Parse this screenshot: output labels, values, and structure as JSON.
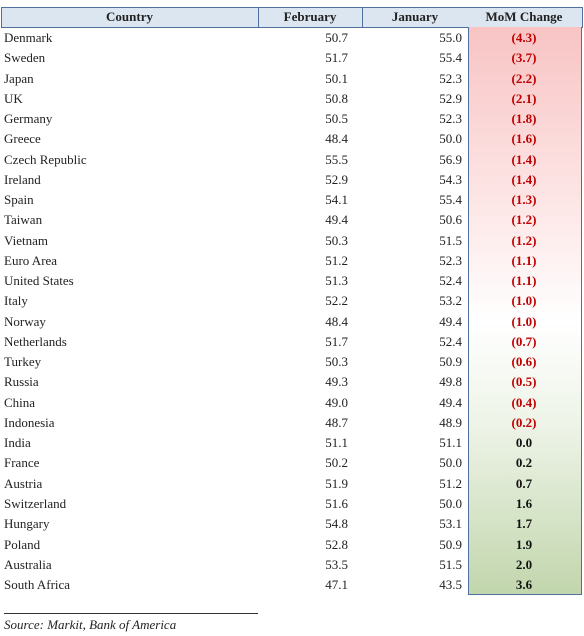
{
  "table": {
    "header": [
      "Country",
      "February",
      "January",
      "MoM Change"
    ],
    "rows": [
      [
        "Denmark",
        "50.7",
        "55.0",
        "(4.3)"
      ],
      [
        "Sweden",
        "51.7",
        "55.4",
        "(3.7)"
      ],
      [
        "Japan",
        "50.1",
        "52.3",
        "(2.2)"
      ],
      [
        "UK",
        "50.8",
        "52.9",
        "(2.1)"
      ],
      [
        "Germany",
        "50.5",
        "52.3",
        "(1.8)"
      ],
      [
        "Greece",
        "48.4",
        "50.0",
        "(1.6)"
      ],
      [
        "Czech Republic",
        "55.5",
        "56.9",
        "(1.4)"
      ],
      [
        "Ireland",
        "52.9",
        "54.3",
        "(1.4)"
      ],
      [
        "Spain",
        "54.1",
        "55.4",
        "(1.3)"
      ],
      [
        "Taiwan",
        "49.4",
        "50.6",
        "(1.2)"
      ],
      [
        "Vietnam",
        "50.3",
        "51.5",
        "(1.2)"
      ],
      [
        "Euro Area",
        "51.2",
        "52.3",
        "(1.1)"
      ],
      [
        "United States",
        "51.3",
        "52.4",
        "(1.1)"
      ],
      [
        "Italy",
        "52.2",
        "53.2",
        "(1.0)"
      ],
      [
        "Norway",
        "48.4",
        "49.4",
        "(1.0)"
      ],
      [
        "Netherlands",
        "51.7",
        "52.4",
        "(0.7)"
      ],
      [
        "Turkey",
        "50.3",
        "50.9",
        "(0.6)"
      ],
      [
        "Russia",
        "49.3",
        "49.8",
        "(0.5)"
      ],
      [
        "China",
        "49.0",
        "49.4",
        "(0.4)"
      ],
      [
        "Indonesia",
        "48.7",
        "48.9",
        "(0.2)"
      ],
      [
        "India",
        "51.1",
        "51.1",
        "0.0"
      ],
      [
        "France",
        "50.2",
        "50.0",
        "0.2"
      ],
      [
        "Austria",
        "51.9",
        "51.2",
        "0.7"
      ],
      [
        "Switzerland",
        "51.6",
        "50.0",
        "1.6"
      ],
      [
        "Hungary",
        "54.8",
        "53.1",
        "1.7"
      ],
      [
        "Poland",
        "52.8",
        "50.9",
        "1.9"
      ],
      [
        "Australia",
        "53.5",
        "51.5",
        "2.0"
      ],
      [
        "South Africa",
        "47.1",
        "43.5",
        "3.6"
      ]
    ]
  },
  "source": "Source: Markit, Bank of America"
}
